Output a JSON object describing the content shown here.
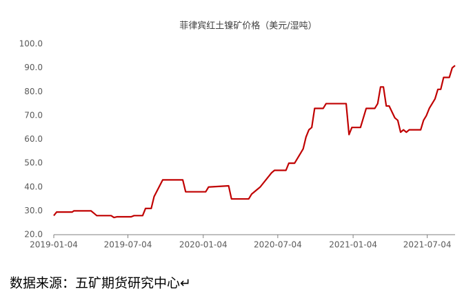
{
  "chart_data": {
    "type": "line",
    "title": "菲律宾红土镍矿价格（美元/湿吨）",
    "source": "数据来源：五矿期货研究中心↵",
    "x": [
      "2019-01-04",
      "2019-01-11",
      "2019-02-18",
      "2019-02-22",
      "2019-04-05",
      "2019-04-12",
      "2019-04-19",
      "2019-05-24",
      "2019-05-31",
      "2019-06-07",
      "2019-07-12",
      "2019-07-19",
      "2019-08-09",
      "2019-08-16",
      "2019-08-30",
      "2019-09-06",
      "2019-09-27",
      "2019-11-15",
      "2019-11-22",
      "2020-01-10",
      "2020-01-17",
      "2020-03-06",
      "2020-03-13",
      "2020-04-24",
      "2020-05-01",
      "2020-05-22",
      "2020-06-19",
      "2020-06-26",
      "2020-07-24",
      "2020-07-31",
      "2020-08-14",
      "2020-08-28",
      "2020-09-04",
      "2020-09-11",
      "2020-09-18",
      "2020-09-25",
      "2020-10-02",
      "2020-10-23",
      "2020-10-30",
      "2020-12-18",
      "2020-12-25",
      "2021-01-01",
      "2021-01-22",
      "2021-02-05",
      "2021-02-26",
      "2021-03-05",
      "2021-03-12",
      "2021-03-19",
      "2021-03-26",
      "2021-04-02",
      "2021-04-16",
      "2021-04-23",
      "2021-04-30",
      "2021-05-07",
      "2021-05-14",
      "2021-05-21",
      "2021-06-18",
      "2021-06-25",
      "2021-07-02",
      "2021-07-09",
      "2021-07-23",
      "2021-07-30",
      "2021-08-06",
      "2021-08-13",
      "2021-08-27",
      "2021-09-03",
      "2021-09-10"
    ],
    "series": [
      {
        "color": "#c00000",
        "values": [
          28,
          29.5,
          29.5,
          30,
          30,
          29,
          28,
          28,
          27.2,
          27.5,
          27.5,
          28,
          28,
          31,
          31,
          36,
          43,
          43,
          38,
          38,
          40,
          40.5,
          35,
          35,
          37,
          40,
          46,
          47,
          47,
          50,
          50,
          54,
          56,
          61,
          64,
          65,
          73,
          73,
          75,
          75,
          62,
          65,
          65,
          73,
          73,
          75,
          82,
          82,
          74,
          74,
          69,
          68,
          63,
          64,
          63,
          64,
          64,
          68,
          70,
          73,
          77,
          81,
          81,
          86,
          86,
          90,
          91
        ]
      }
    ],
    "xlim": [
      "2019-01-04",
      "2021-09-10"
    ],
    "xticks": [
      "2019-01-04",
      "2019-07-04",
      "2020-01-04",
      "2020-07-04",
      "2021-01-04",
      "2021-07-04"
    ],
    "ylim": [
      20,
      100
    ],
    "yticks": [
      {
        "value": 20,
        "label": "20.0"
      },
      {
        "value": 30,
        "label": "30.0"
      },
      {
        "value": 40,
        "label": "40.0"
      },
      {
        "value": 50,
        "label": "50.0"
      },
      {
        "value": 60,
        "label": "60.0"
      },
      {
        "value": 70,
        "label": "70.0"
      },
      {
        "value": 80,
        "label": "80.0"
      },
      {
        "value": 90,
        "label": "90.0"
      },
      {
        "value": 100,
        "label": "100.0"
      }
    ]
  }
}
